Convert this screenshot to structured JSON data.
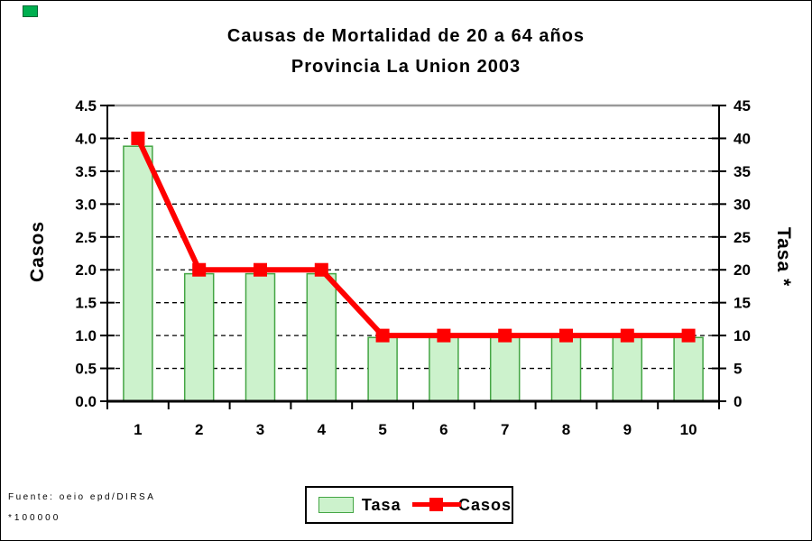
{
  "title": {
    "line1": "Causas de Mortalidad de 20 a 64 años",
    "line2": "Provincia La Union 2003"
  },
  "corner_marker": {
    "color": "#00b050"
  },
  "legend": {
    "items": [
      {
        "label": "Tasa",
        "swatch": "green-bar"
      },
      {
        "label": "Casos",
        "swatch": "red-line-marker"
      }
    ]
  },
  "footer": {
    "source": "Fuente: oeio epd/DIRSA",
    "rate_note": "*100000"
  },
  "colors": {
    "bar_fill": "#ccf2cc",
    "bar_border": "#44a544",
    "line": "#ff0000",
    "grid": "#000000",
    "plot_top_border": "#999999",
    "axis": "#000000"
  },
  "chart_data": {
    "type": "combo-bar-line",
    "title": "Causas de Mortalidad de 20 a 64 años - Provincia La Union 2003",
    "categories": [
      "1",
      "2",
      "3",
      "4",
      "5",
      "6",
      "7",
      "8",
      "9",
      "10"
    ],
    "series": [
      {
        "name": "Tasa",
        "type": "bar",
        "axis": "right",
        "values": [
          38.8,
          19.4,
          19.4,
          19.4,
          9.7,
          9.7,
          9.7,
          9.7,
          9.7,
          9.7
        ],
        "fill": "#ccf2cc",
        "border": "#44a544"
      },
      {
        "name": "Casos",
        "type": "line",
        "axis": "left",
        "values": [
          4,
          2,
          2,
          2,
          1,
          1,
          1,
          1,
          1,
          1
        ],
        "color": "#ff0000",
        "marker": "square"
      }
    ],
    "left_axis": {
      "title": "Casos",
      "min": 0,
      "max": 4.5,
      "step": 0.5,
      "tick_labels": [
        "0.0",
        "0.5",
        "1.0",
        "1.5",
        "2.0",
        "2.5",
        "3.0",
        "3.5",
        "4.0",
        "4.5"
      ]
    },
    "right_axis": {
      "title": "Tasa *",
      "min": 0,
      "max": 45,
      "step": 5,
      "tick_labels": [
        "0",
        "5",
        "10",
        "15",
        "20",
        "25",
        "30",
        "35",
        "40",
        "45"
      ]
    },
    "x_axis": {
      "tick_labels": [
        "1",
        "2",
        "3",
        "4",
        "5",
        "6",
        "7",
        "8",
        "9",
        "10"
      ]
    },
    "grid": {
      "show": true,
      "style": "dashed",
      "color": "#000000",
      "top_line_color": "#999999"
    },
    "legend_position": "bottom"
  }
}
